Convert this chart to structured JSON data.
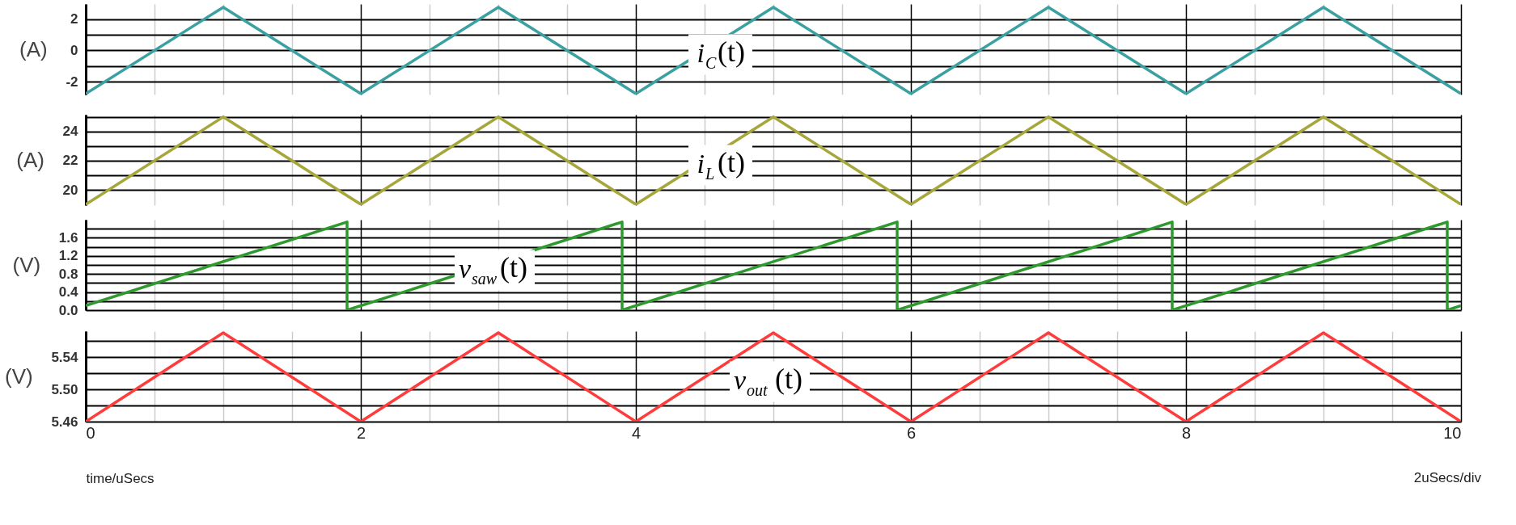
{
  "chart_data": [
    {
      "type": "line",
      "ylabel": "(A)",
      "tick_labels": "y",
      "grid": true,
      "xlim": [
        0,
        10
      ],
      "xticks": [
        0,
        {
          "value": 0.5,
          "label": null
        },
        {
          "value": 1,
          "label": null
        },
        {
          "value": 1.5,
          "label": null
        },
        2,
        {
          "value": 2.5,
          "label": null
        },
        {
          "value": 3,
          "label": null
        },
        {
          "value": 3.5,
          "label": null
        },
        4,
        {
          "value": 4.5,
          "label": null
        },
        {
          "value": 5,
          "label": null
        },
        {
          "value": 5.5,
          "label": null
        },
        6,
        {
          "value": 6.5,
          "label": null
        },
        {
          "value": 7,
          "label": null
        },
        {
          "value": 7.5,
          "label": null
        },
        8,
        {
          "value": 8.5,
          "label": null
        },
        {
          "value": 9,
          "label": null
        },
        {
          "value": 9.5,
          "label": null
        },
        10
      ],
      "ylim": [
        -2.8,
        2.95
      ],
      "yticks": [
        -2,
        {
          "value": -1,
          "label": null
        },
        0,
        {
          "value": 1,
          "label": null
        },
        2
      ],
      "series": [
        {
          "name": "i$_{C}$(t)",
          "color": "#3aa0a0",
          "x": [
            0,
            1,
            2,
            3,
            4,
            5,
            6,
            7,
            8,
            9,
            10
          ],
          "values": [
            -2.75,
            2.75,
            -2.75,
            2.75,
            -2.75,
            2.75,
            -2.75,
            2.75,
            -2.75,
            2.75,
            -2.75
          ]
        }
      ]
    },
    {
      "type": "line",
      "ylabel": "(A)",
      "tick_labels": "y",
      "grid": true,
      "xlim": [
        0,
        10
      ],
      "xticks": [
        0,
        {
          "value": 0.5,
          "label": null
        },
        {
          "value": 1,
          "label": null
        },
        {
          "value": 1.5,
          "label": null
        },
        2,
        {
          "value": 2.5,
          "label": null
        },
        {
          "value": 3,
          "label": null
        },
        {
          "value": 3.5,
          "label": null
        },
        4,
        {
          "value": 4.5,
          "label": null
        },
        {
          "value": 5,
          "label": null
        },
        {
          "value": 5.5,
          "label": null
        },
        6,
        {
          "value": 6.5,
          "label": null
        },
        {
          "value": 7,
          "label": null
        },
        {
          "value": 7.5,
          "label": null
        },
        8,
        {
          "value": 8.5,
          "label": null
        },
        {
          "value": 9,
          "label": null
        },
        {
          "value": 9.5,
          "label": null
        },
        10
      ],
      "ylim": [
        18.95,
        25.15
      ],
      "yticks": [
        20,
        {
          "value": 21,
          "label": null
        },
        22,
        {
          "value": 23,
          "label": null
        },
        24,
        {
          "value": 25,
          "label": null
        }
      ],
      "series": [
        {
          "name": "i$_{L}$(t)",
          "color": "#a6a63a",
          "x": [
            0,
            1,
            2,
            3,
            4,
            5,
            6,
            7,
            8,
            9,
            10
          ],
          "values": [
            19,
            25,
            19,
            25,
            19,
            25,
            19,
            25,
            19,
            25,
            19
          ]
        }
      ]
    },
    {
      "type": "line",
      "ylabel": "(V)",
      "tick_labels": "y",
      "grid": true,
      "xlim": [
        0,
        10
      ],
      "xticks": [
        0,
        {
          "value": 0.5,
          "label": null
        },
        {
          "value": 1,
          "label": null
        },
        {
          "value": 1.5,
          "label": null
        },
        2,
        {
          "value": 2.5,
          "label": null
        },
        {
          "value": 3,
          "label": null
        },
        {
          "value": 3.5,
          "label": null
        },
        4,
        {
          "value": 4.5,
          "label": null
        },
        {
          "value": 5,
          "label": null
        },
        {
          "value": 5.5,
          "label": null
        },
        6,
        {
          "value": 6.5,
          "label": null
        },
        {
          "value": 7,
          "label": null
        },
        {
          "value": 7.5,
          "label": null
        },
        8,
        {
          "value": 8.5,
          "label": null
        },
        {
          "value": 9,
          "label": null
        },
        {
          "value": 9.5,
          "label": null
        },
        10
      ],
      "ylim": [
        0,
        2.0
      ],
      "yticks": [
        {
          "value": 0,
          "label": "0.0"
        },
        {
          "value": 0.2,
          "label": null
        },
        0.4,
        {
          "value": 0.6,
          "label": null
        },
        0.8,
        {
          "value": 1.0,
          "label": null
        },
        1.2,
        {
          "value": 1.4,
          "label": null
        },
        1.6,
        {
          "value": 1.8,
          "label": null
        }
      ],
      "series": [
        {
          "name": "v$_{saw}$(t)",
          "color": "#2e9a2e",
          "x": [
            0,
            1.9,
            1.9,
            3.9,
            3.9,
            5.9,
            5.9,
            7.9,
            7.9,
            9.9,
            9.9,
            10
          ],
          "values": [
            0.1,
            1.95,
            0,
            1.95,
            0,
            1.95,
            0,
            1.95,
            0,
            1.95,
            0,
            0.1
          ]
        }
      ]
    },
    {
      "type": "line",
      "ylabel": "(V)",
      "xlabel": "time/uSecs",
      "grid": true,
      "annotations": [
        "2uSecs/div"
      ],
      "xlim": [
        0,
        10
      ],
      "xticks": [
        0,
        {
          "value": 0.5,
          "label": null
        },
        {
          "value": 1,
          "label": null
        },
        {
          "value": 1.5,
          "label": null
        },
        2,
        {
          "value": 2.5,
          "label": null
        },
        {
          "value": 3,
          "label": null
        },
        {
          "value": 3.5,
          "label": null
        },
        4,
        {
          "value": 4.5,
          "label": null
        },
        {
          "value": 5,
          "label": null
        },
        {
          "value": 5.5,
          "label": null
        },
        6,
        {
          "value": 6.5,
          "label": null
        },
        {
          "value": 7,
          "label": null
        },
        {
          "value": 7.5,
          "label": null
        },
        8,
        {
          "value": 8.5,
          "label": null
        },
        {
          "value": 9,
          "label": null
        },
        {
          "value": 9.5,
          "label": null
        },
        10
      ],
      "ylim": [
        5.46,
        5.572
      ],
      "yticks": [
        {
          "value": 5.46,
          "label": "5.46"
        },
        {
          "value": 5.48,
          "label": null
        },
        {
          "value": 5.5,
          "label": "5.50"
        },
        {
          "value": 5.52,
          "label": null
        },
        {
          "value": 5.54,
          "label": "5.54"
        },
        {
          "value": 5.56,
          "label": null
        }
      ],
      "series": [
        {
          "name": "v$_{out}$(t)",
          "color": "#ff3b3b",
          "x": [
            0,
            1,
            2,
            3,
            4,
            5,
            6,
            7,
            8,
            9,
            10
          ],
          "values": [
            5.46,
            5.57,
            5.46,
            5.57,
            5.46,
            5.57,
            5.46,
            5.57,
            5.46,
            5.57,
            5.46
          ]
        }
      ]
    }
  ]
}
